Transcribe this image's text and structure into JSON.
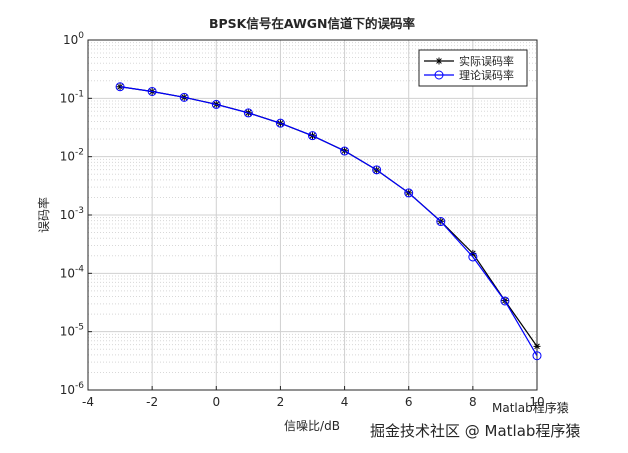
{
  "chart_data": {
    "type": "line",
    "title": "BPSK信号在AWGN信道下的误码率",
    "xlabel": "信噪比/dB",
    "ylabel": "误码率",
    "x": [
      -3,
      -2,
      -1,
      0,
      1,
      2,
      3,
      4,
      5,
      6,
      7,
      8,
      9,
      10
    ],
    "series": [
      {
        "name": "实际误码率",
        "color": "#000000",
        "marker": "*",
        "values": [
          0.158,
          0.131,
          0.104,
          0.079,
          0.0565,
          0.0374,
          0.0228,
          0.0126,
          0.0059,
          0.0024,
          0.00078,
          0.00022,
          3.4e-05,
          5.6e-06
        ]
      },
      {
        "name": "理论误码率",
        "color": "#0000ff",
        "marker": "o",
        "values": [
          0.158,
          0.131,
          0.104,
          0.0786,
          0.0563,
          0.0375,
          0.0229,
          0.0125,
          0.00595,
          0.00239,
          0.000773,
          0.000191,
          3.36e-05,
          3.87e-06
        ]
      }
    ],
    "xlim": [
      -4,
      10
    ],
    "xticks": [
      -4,
      -2,
      0,
      2,
      4,
      6,
      8,
      10
    ],
    "ylim": [
      1e-06,
      1
    ],
    "ylog": true,
    "yticks": [
      {
        "value": 1e-06,
        "label": "10",
        "exponent": "-6"
      },
      {
        "value": 1e-05,
        "label": "10",
        "exponent": "-5"
      },
      {
        "value": 0.0001,
        "label": "10",
        "exponent": "-4"
      },
      {
        "value": 0.001,
        "label": "10",
        "exponent": "-3"
      },
      {
        "value": 0.01,
        "label": "10",
        "exponent": "-2"
      },
      {
        "value": 0.1,
        "label": "10",
        "exponent": "-1"
      },
      {
        "value": 1,
        "label": "10",
        "exponent": "0"
      }
    ],
    "grid": true,
    "legend": "upper right",
    "watermarks": [
      "Matlab程序猿",
      "掘金技术社区 @ Matlab程序猿"
    ]
  }
}
